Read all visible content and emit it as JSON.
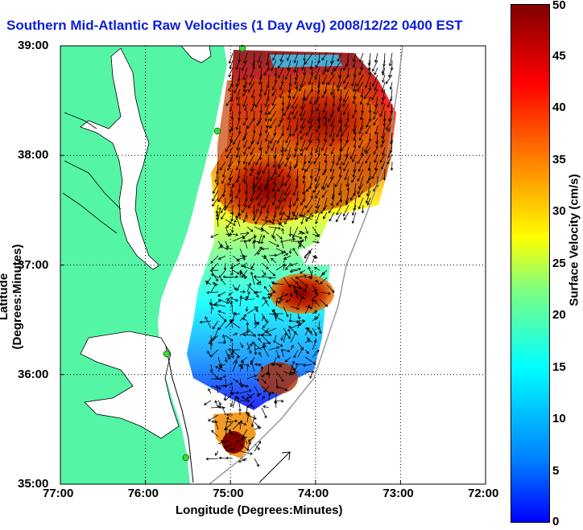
{
  "title": "Southern Mid-Atlantic Raw Velocities (1 Day Avg) 2008/12/22 0400 EST",
  "x_axis": {
    "label": "Longitude (Degrees:Minutes)",
    "ticks": [
      "77:00",
      "76:00",
      "75:00",
      "74:00",
      "73:00",
      "72:00"
    ]
  },
  "y_axis": {
    "label": "Latitude (Degrees:Minutes)",
    "ticks": [
      "39:00",
      "38:00",
      "37:00",
      "36:00",
      "35:00"
    ]
  },
  "colorbar": {
    "label": "Surface Velocity (cm/s)",
    "ticks": [
      "50",
      "45",
      "40",
      "35",
      "30",
      "25",
      "20",
      "15",
      "10",
      "5",
      "0"
    ],
    "range": [
      0,
      50
    ]
  },
  "colors": {
    "land": "#55f5a6",
    "water": "#ffffff",
    "title": "#0b1fd6",
    "station": "#33dd33"
  },
  "map": {
    "lon_range": [
      -77,
      -72
    ],
    "lat_range": [
      35,
      39
    ],
    "grid": true
  }
}
